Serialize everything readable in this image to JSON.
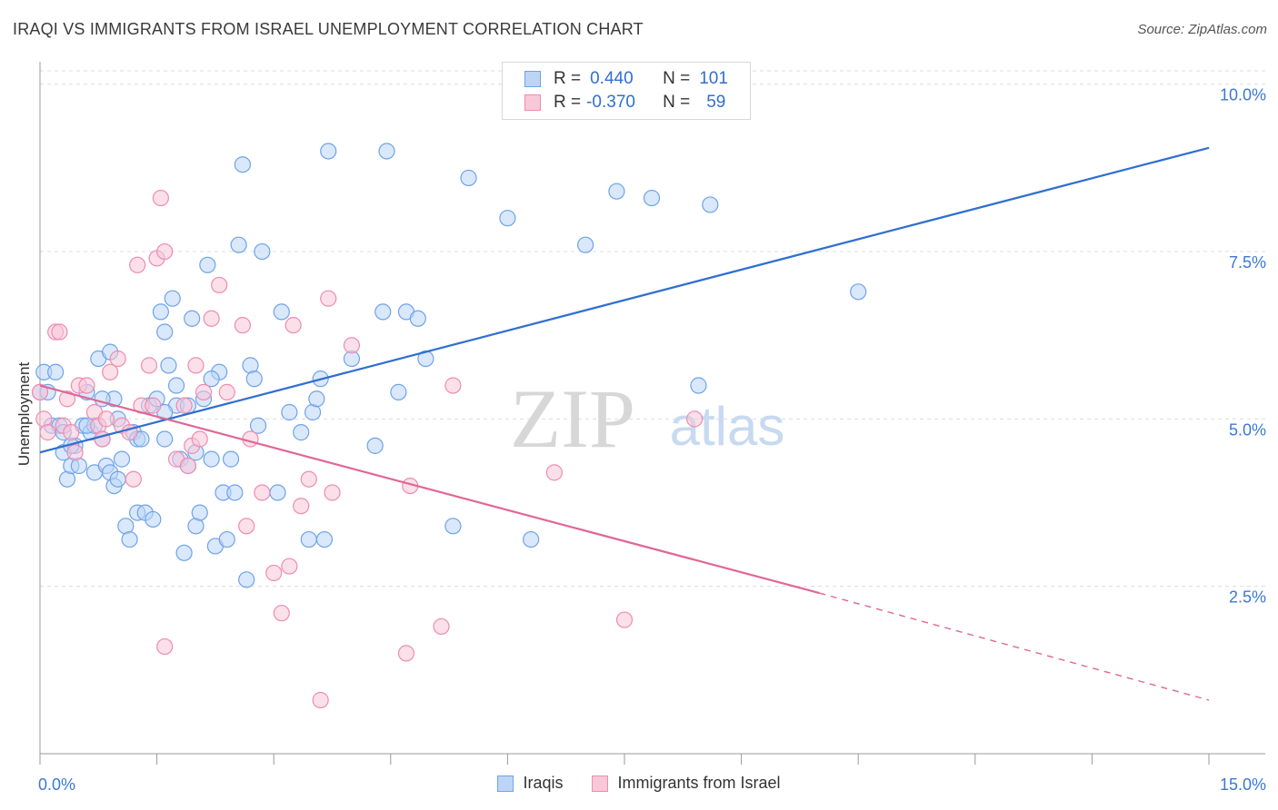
{
  "header": {
    "title": "IRAQI VS IMMIGRANTS FROM ISRAEL UNEMPLOYMENT CORRELATION CHART",
    "source": "Source: ZipAtlas.com"
  },
  "watermark": {
    "zip": "ZIP",
    "atlas": "atlas"
  },
  "legend_stats": [
    {
      "r_label": "R =",
      "r_value": "0.440",
      "n_label": "N =",
      "n_value": "101",
      "color": "#6ea3e8",
      "fill": "#bcd5f7"
    },
    {
      "r_label": "R =",
      "r_value": "-0.370",
      "n_label": "N =",
      "n_value": "59",
      "color": "#ee8cb0",
      "fill": "#f8c7d8"
    }
  ],
  "chart_data": {
    "type": "scatter",
    "title": "IRAQI VS IMMIGRANTS FROM ISRAEL UNEMPLOYMENT CORRELATION CHART",
    "xlabel": "",
    "ylabel": "Unemployment",
    "xlim": [
      0,
      15
    ],
    "ylim": [
      0,
      10.2
    ],
    "x_tick_labels": [
      "0.0%",
      "15.0%"
    ],
    "y_ticks": [
      2.5,
      5.0,
      7.5,
      10.0
    ],
    "y_tick_labels": [
      "2.5%",
      "5.0%",
      "7.5%",
      "10.0%"
    ],
    "grid": "horizontal dashed",
    "legend_position": "bottom",
    "series": [
      {
        "name": "Iraqis",
        "color": "#6ea3e8",
        "fill": "#bcd5f7",
        "trend_line": {
          "x": [
            0.0,
            15.0
          ],
          "y": [
            4.5,
            9.05
          ],
          "color": "#2f6fd0"
        },
        "points": [
          [
            0.0,
            5.4
          ],
          [
            0.05,
            5.7
          ],
          [
            0.2,
            5.7
          ],
          [
            0.15,
            4.9
          ],
          [
            0.25,
            4.9
          ],
          [
            0.3,
            4.8
          ],
          [
            0.3,
            4.5
          ],
          [
            0.35,
            4.1
          ],
          [
            0.4,
            4.3
          ],
          [
            0.45,
            4.6
          ],
          [
            0.5,
            4.3
          ],
          [
            0.55,
            4.9
          ],
          [
            0.6,
            5.4
          ],
          [
            0.65,
            4.8
          ],
          [
            0.7,
            4.9
          ],
          [
            0.7,
            4.2
          ],
          [
            0.75,
            5.9
          ],
          [
            0.8,
            4.7
          ],
          [
            0.85,
            4.3
          ],
          [
            0.9,
            4.2
          ],
          [
            0.9,
            6.0
          ],
          [
            0.95,
            5.3
          ],
          [
            0.95,
            4.0
          ],
          [
            1.0,
            4.1
          ],
          [
            1.05,
            4.4
          ],
          [
            1.1,
            3.4
          ],
          [
            1.15,
            3.2
          ],
          [
            1.2,
            4.8
          ],
          [
            1.25,
            4.7
          ],
          [
            1.25,
            3.6
          ],
          [
            1.3,
            4.7
          ],
          [
            1.35,
            3.6
          ],
          [
            1.4,
            5.2
          ],
          [
            1.45,
            3.5
          ],
          [
            1.5,
            5.3
          ],
          [
            1.55,
            6.6
          ],
          [
            1.6,
            6.3
          ],
          [
            1.6,
            4.7
          ],
          [
            1.65,
            5.8
          ],
          [
            1.7,
            6.8
          ],
          [
            1.75,
            5.5
          ],
          [
            1.75,
            5.2
          ],
          [
            1.8,
            4.4
          ],
          [
            1.85,
            3.0
          ],
          [
            1.9,
            4.3
          ],
          [
            1.95,
            6.5
          ],
          [
            2.0,
            3.4
          ],
          [
            2.05,
            3.6
          ],
          [
            2.1,
            5.3
          ],
          [
            2.15,
            7.3
          ],
          [
            2.2,
            4.4
          ],
          [
            2.25,
            3.1
          ],
          [
            2.3,
            5.7
          ],
          [
            2.35,
            3.9
          ],
          [
            2.4,
            3.2
          ],
          [
            2.45,
            4.4
          ],
          [
            2.5,
            3.9
          ],
          [
            2.55,
            7.6
          ],
          [
            2.6,
            8.8
          ],
          [
            2.65,
            2.6
          ],
          [
            2.7,
            5.8
          ],
          [
            2.75,
            5.6
          ],
          [
            2.8,
            4.9
          ],
          [
            2.85,
            7.5
          ],
          [
            3.05,
            3.9
          ],
          [
            3.1,
            6.6
          ],
          [
            3.2,
            5.1
          ],
          [
            3.35,
            4.8
          ],
          [
            3.45,
            3.2
          ],
          [
            3.5,
            5.1
          ],
          [
            3.55,
            5.3
          ],
          [
            3.6,
            5.6
          ],
          [
            3.65,
            3.2
          ],
          [
            3.7,
            9.0
          ],
          [
            4.0,
            5.9
          ],
          [
            4.3,
            4.6
          ],
          [
            4.4,
            6.6
          ],
          [
            4.45,
            9.0
          ],
          [
            4.6,
            5.4
          ],
          [
            4.7,
            6.6
          ],
          [
            4.85,
            6.5
          ],
          [
            4.95,
            5.9
          ],
          [
            5.3,
            3.4
          ],
          [
            5.5,
            8.6
          ],
          [
            6.0,
            8.0
          ],
          [
            6.3,
            3.2
          ],
          [
            7.0,
            7.6
          ],
          [
            7.4,
            8.4
          ],
          [
            7.85,
            8.3
          ],
          [
            8.45,
            5.5
          ],
          [
            8.6,
            8.2
          ],
          [
            10.5,
            6.9
          ],
          [
            0.1,
            5.4
          ],
          [
            0.6,
            4.9
          ],
          [
            1.0,
            5.0
          ],
          [
            1.6,
            5.1
          ],
          [
            0.8,
            5.3
          ],
          [
            2.2,
            5.6
          ],
          [
            0.4,
            4.6
          ],
          [
            1.9,
            5.2
          ],
          [
            2.0,
            4.5
          ]
        ]
      },
      {
        "name": "Immigrants from Israel",
        "color": "#ee8cb0",
        "fill": "#f8c7d8",
        "trend_line": {
          "x": [
            0.0,
            10.0
          ],
          "y": [
            5.5,
            2.4
          ],
          "color": "#e06794",
          "dash_x": [
            10.0,
            15.0
          ],
          "dash_y": [
            2.4,
            0.8
          ]
        },
        "points": [
          [
            0.0,
            5.4
          ],
          [
            0.05,
            5.0
          ],
          [
            0.1,
            4.8
          ],
          [
            0.2,
            6.3
          ],
          [
            0.25,
            6.3
          ],
          [
            0.3,
            4.9
          ],
          [
            0.35,
            5.3
          ],
          [
            0.4,
            4.8
          ],
          [
            0.45,
            4.5
          ],
          [
            0.5,
            5.5
          ],
          [
            0.6,
            5.5
          ],
          [
            0.7,
            5.1
          ],
          [
            0.75,
            4.9
          ],
          [
            0.8,
            4.7
          ],
          [
            0.85,
            5.0
          ],
          [
            0.9,
            5.7
          ],
          [
            1.0,
            5.9
          ],
          [
            1.05,
            4.9
          ],
          [
            1.15,
            4.8
          ],
          [
            1.2,
            4.1
          ],
          [
            1.25,
            7.3
          ],
          [
            1.3,
            5.2
          ],
          [
            1.4,
            5.8
          ],
          [
            1.45,
            5.2
          ],
          [
            1.5,
            7.4
          ],
          [
            1.55,
            8.3
          ],
          [
            1.6,
            7.5
          ],
          [
            1.6,
            1.6
          ],
          [
            1.75,
            4.4
          ],
          [
            1.85,
            5.2
          ],
          [
            1.9,
            4.3
          ],
          [
            1.95,
            4.6
          ],
          [
            2.0,
            5.8
          ],
          [
            2.05,
            4.7
          ],
          [
            2.1,
            5.4
          ],
          [
            2.2,
            6.5
          ],
          [
            2.3,
            7.0
          ],
          [
            2.4,
            5.4
          ],
          [
            2.6,
            6.4
          ],
          [
            2.65,
            3.4
          ],
          [
            2.7,
            4.7
          ],
          [
            2.85,
            3.9
          ],
          [
            3.0,
            2.7
          ],
          [
            3.1,
            2.1
          ],
          [
            3.2,
            2.8
          ],
          [
            3.25,
            6.4
          ],
          [
            3.35,
            3.7
          ],
          [
            3.45,
            4.1
          ],
          [
            3.6,
            0.8
          ],
          [
            3.7,
            6.8
          ],
          [
            3.75,
            3.9
          ],
          [
            4.0,
            6.1
          ],
          [
            4.7,
            1.5
          ],
          [
            4.75,
            4.0
          ],
          [
            5.15,
            1.9
          ],
          [
            5.3,
            5.5
          ],
          [
            6.6,
            4.2
          ],
          [
            7.5,
            2.0
          ],
          [
            8.4,
            5.0
          ]
        ]
      }
    ]
  },
  "bottom_legend": [
    {
      "label": "Iraqis",
      "color": "#6ea3e8",
      "fill": "#bcd5f7"
    },
    {
      "label": "Immigrants from Israel",
      "color": "#ee8cb0",
      "fill": "#f8c7d8"
    }
  ]
}
